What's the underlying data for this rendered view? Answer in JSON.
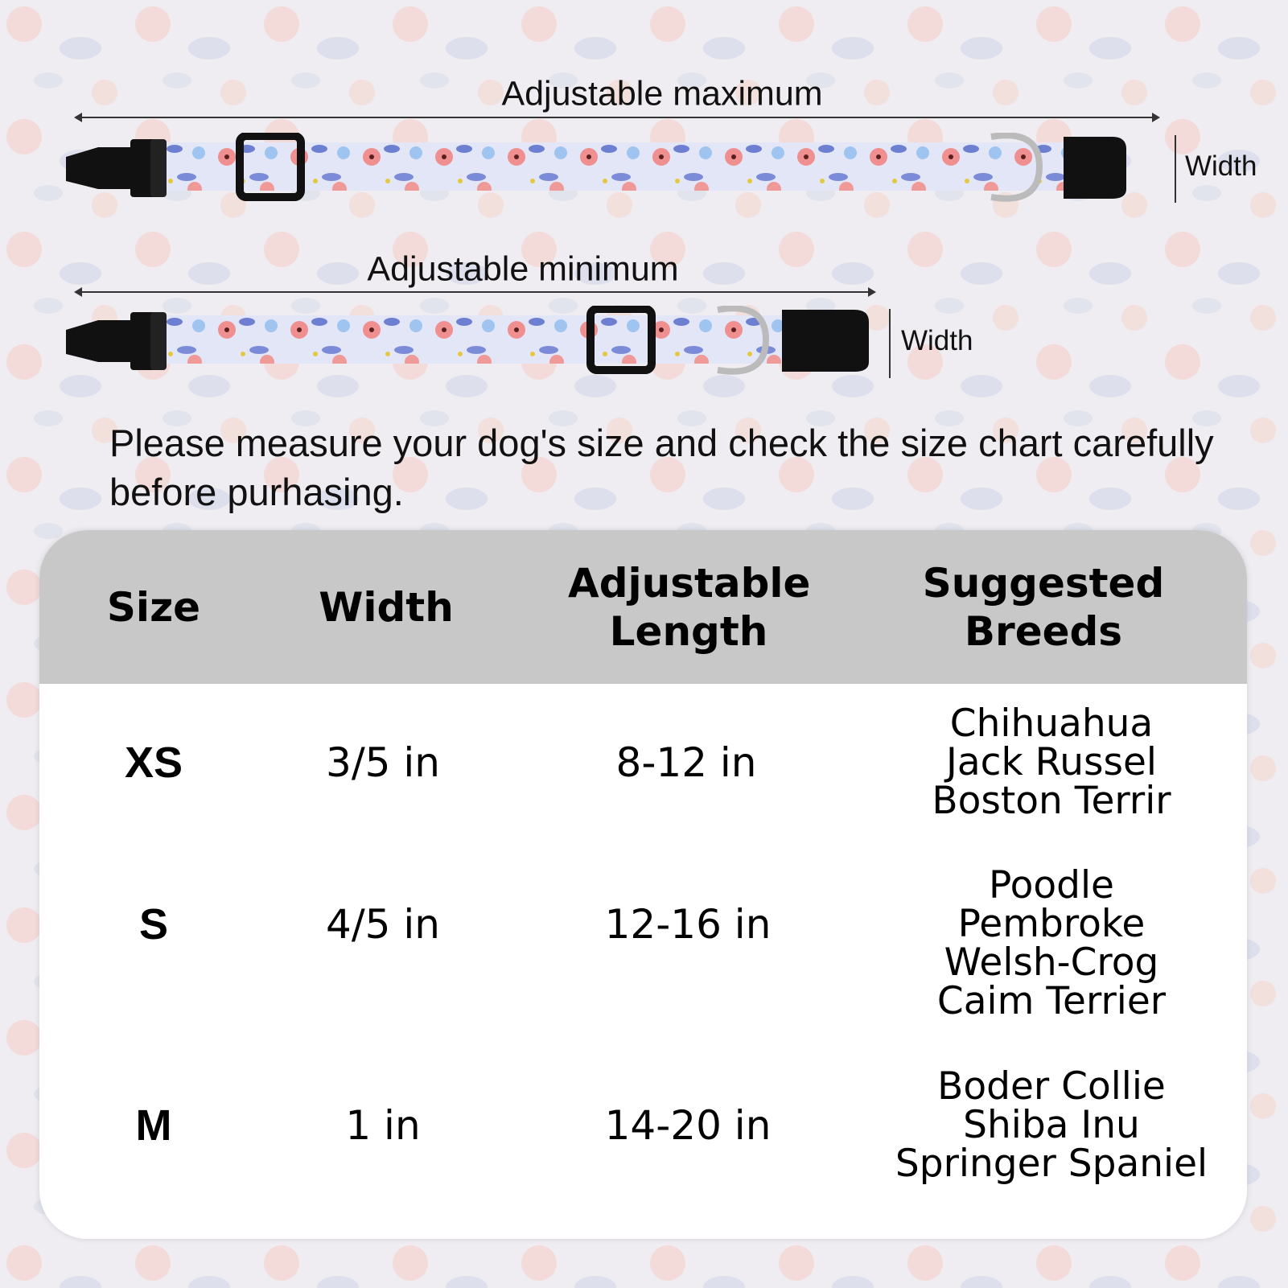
{
  "diagram": {
    "max_label": "Adjustable maximum",
    "min_label": "Adjustable minimum",
    "width_label_1": "Width",
    "width_label_2": "Width"
  },
  "note": "Please measure your dog's size and check the size chart carefully before purhasing.",
  "colors": {
    "header_bg": "#c8c8c8",
    "strap": "#dfe3f6",
    "flower_pink": "#ef8f8f",
    "leaf_blue": "#6d7fd0",
    "buckle": "#111111"
  },
  "table": {
    "headers": [
      "Size",
      "Width",
      "Adjustable Length",
      "Suggested Breeds"
    ],
    "rows": [
      {
        "size": "XS",
        "width": "3/5 in",
        "length": "8-12 in",
        "breeds": [
          "Chihuahua",
          "Jack Russel",
          "Boston Terrir"
        ]
      },
      {
        "size": "S",
        "width": "4/5 in",
        "length": "12-16 in",
        "breeds": [
          "Poodle",
          "Pembroke",
          "Welsh-Crog",
          "Caim Terrier"
        ]
      },
      {
        "size": "M",
        "width": "1 in",
        "length": "14-20 in",
        "breeds": [
          "Boder Collie",
          "Shiba Inu",
          "Springer Spaniel"
        ]
      }
    ]
  }
}
